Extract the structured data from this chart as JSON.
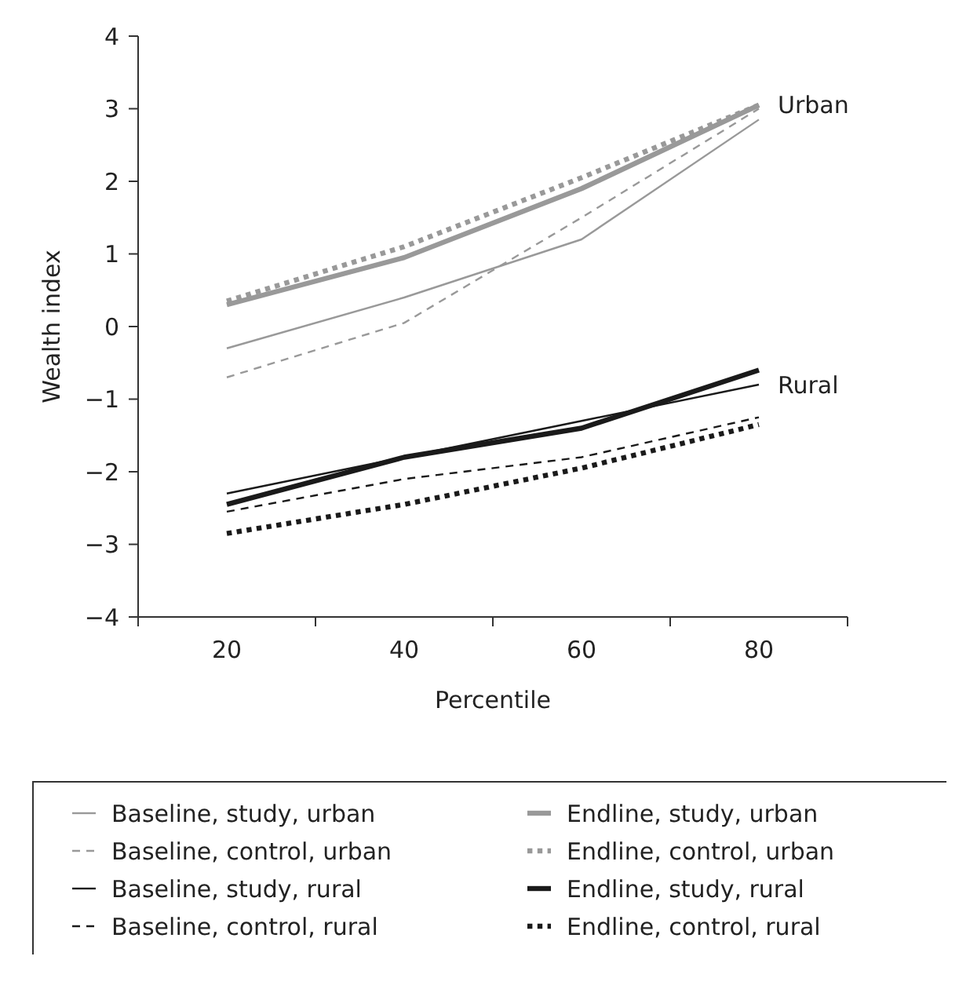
{
  "chart_data": {
    "type": "line",
    "xlabel": "Percentile",
    "ylabel": "Wealth index",
    "categories": [
      "20",
      "40",
      "60",
      "80"
    ],
    "ylim": [
      -4,
      4
    ],
    "yticks": [
      {
        "value": -4,
        "label": "−4"
      },
      {
        "value": -3,
        "label": "−3"
      },
      {
        "value": -2,
        "label": "−2"
      },
      {
        "value": -1,
        "label": "−1"
      },
      0,
      1,
      2,
      3,
      4
    ],
    "grid": false,
    "legend": "bottom",
    "marker": "none",
    "series": [
      {
        "name": "Baseline, study, urban",
        "color": "#999999",
        "line_style": "solid",
        "values": [
          -0.3,
          0.4,
          1.2,
          2.85
        ]
      },
      {
        "name": "Baseline, control, urban",
        "color": "#999999",
        "line_style": "dashed",
        "values": [
          -0.7,
          0.05,
          1.5,
          3.0
        ]
      },
      {
        "name": "Baseline, study, rural",
        "color": "#1a1a1a",
        "line_style": "solid",
        "values": [
          -2.3,
          -1.8,
          -1.3,
          -0.8
        ]
      },
      {
        "name": "Baseline, control, rural",
        "color": "#1a1a1a",
        "line_style": "dashed",
        "values": [
          -2.55,
          -2.1,
          -1.8,
          -1.25
        ]
      },
      {
        "name": "Endline, study, urban",
        "color": "#999999",
        "line_style": "solid",
        "values": [
          0.3,
          0.95,
          1.9,
          3.05
        ]
      },
      {
        "name": "Endline, control, urban",
        "color": "#999999",
        "line_style": "dotted",
        "values": [
          0.35,
          1.1,
          2.05,
          3.05
        ]
      },
      {
        "name": "Endline, study, rural",
        "color": "#1a1a1a",
        "line_style": "solid",
        "values": [
          -2.45,
          -1.8,
          -1.4,
          -0.6
        ]
      },
      {
        "name": "Endline, control, rural",
        "color": "#1a1a1a",
        "line_style": "dotted",
        "values": [
          -2.85,
          -2.45,
          -1.95,
          -1.35
        ]
      }
    ],
    "annotations": [
      {
        "text": "Urban",
        "x": "80",
        "y": 3.05
      },
      {
        "text": "Rural",
        "x": "80",
        "y": -0.8
      }
    ]
  }
}
